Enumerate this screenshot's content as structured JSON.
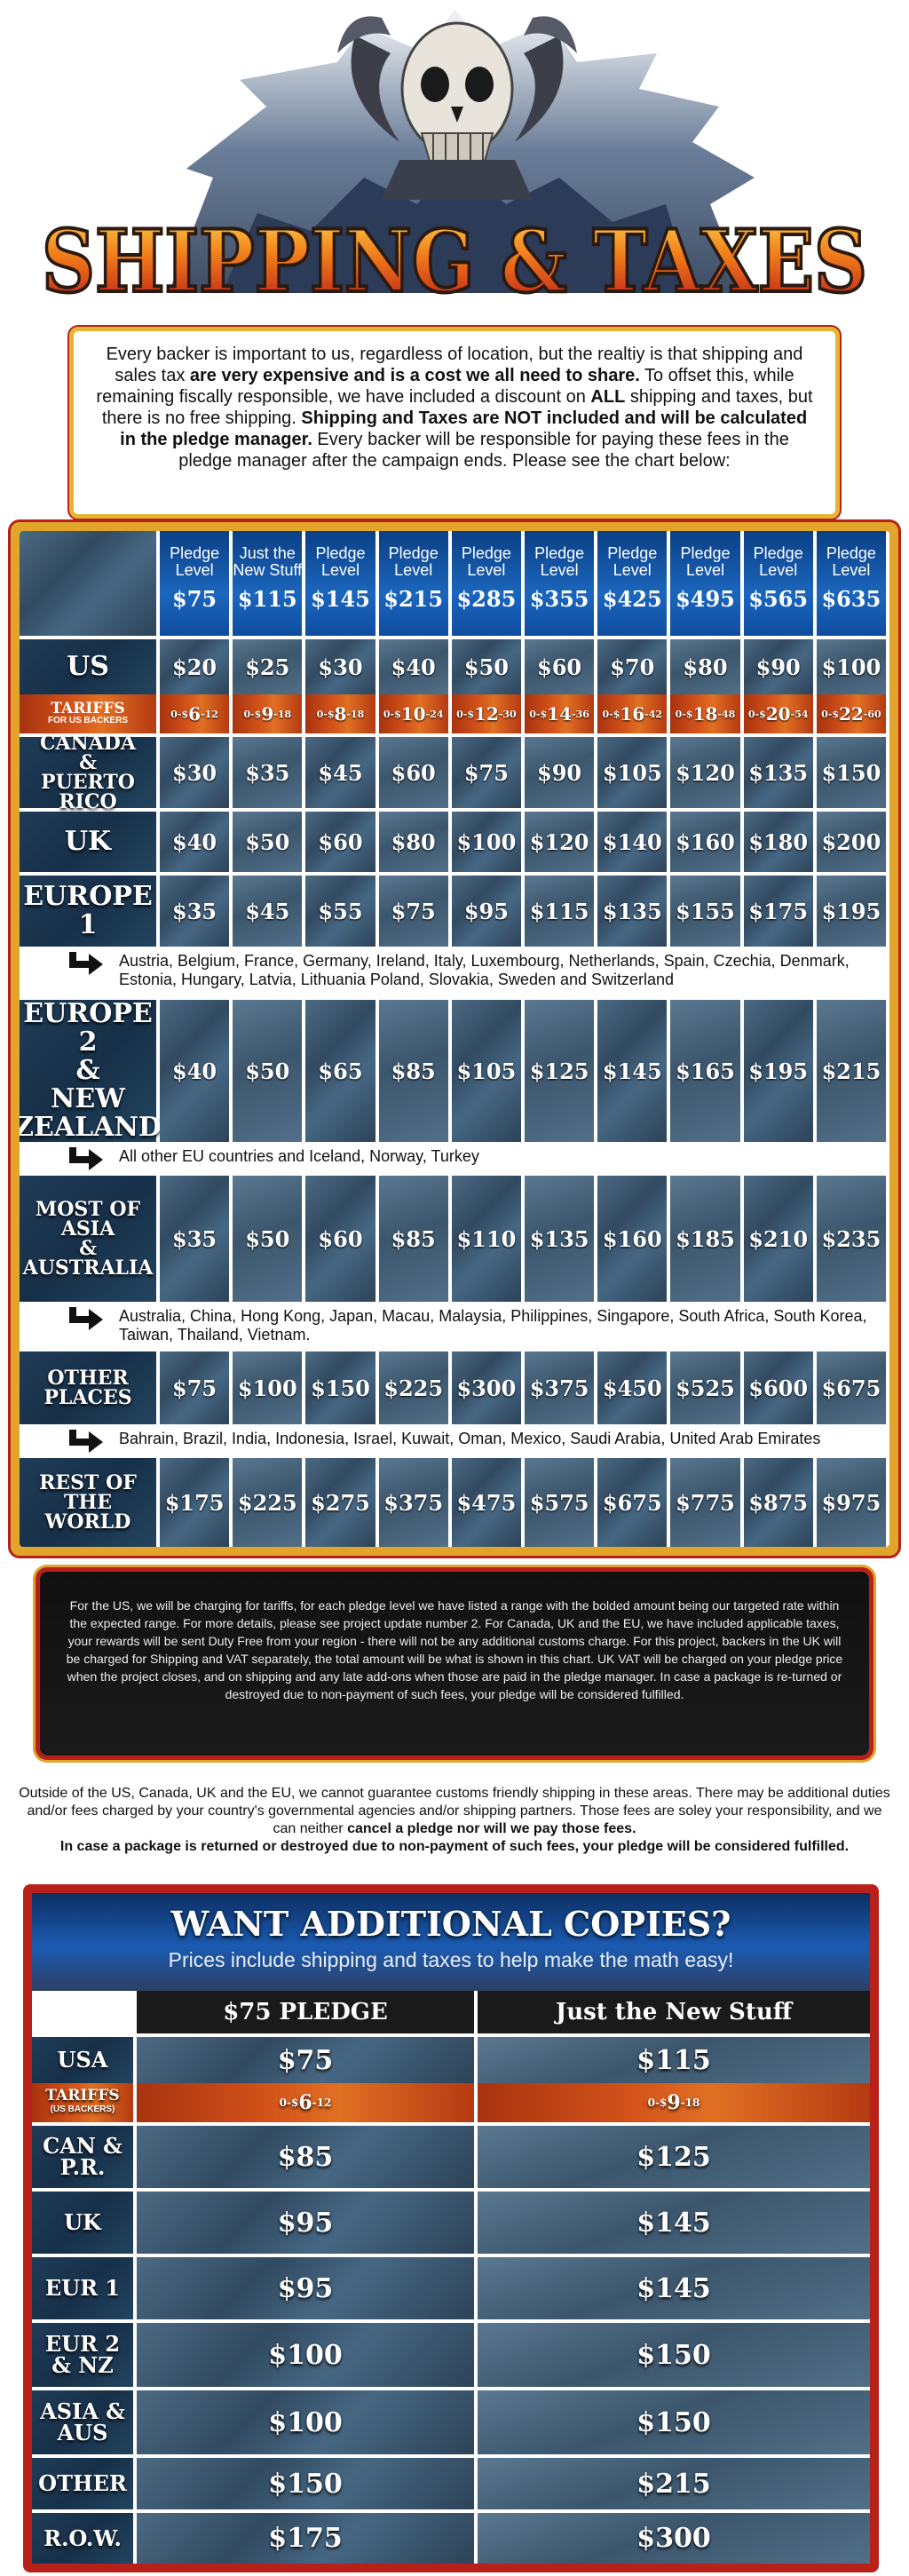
{
  "header": {
    "title": "SHIPPING & TAXES"
  },
  "intro": {
    "p1": "Every backer is important to us, regardless of location, but the realtiy is that shipping and sales tax ",
    "p1_bold": "are very expensive and is a cost we all need to share.",
    "p2": " To offset this, while remaining fiscally responsible, we have included a discount on ",
    "p2_bold": "ALL",
    "p3": " shipping and taxes, but there is no free shipping. ",
    "p3_bold": "Shipping and Taxes are NOT included and will be calculated in the pledge manager.",
    "p4": " Every backer will be responsible for paying these fees in the pledge manager after the campaign ends.  Please see the chart below:"
  },
  "table": {
    "header_cells": [
      {
        "label": "Pledge Level",
        "amount": "$75"
      },
      {
        "label": "Just the New Stuff",
        "amount": "$115"
      },
      {
        "label": "Pledge Level",
        "amount": "$145"
      },
      {
        "label": "Pledge Level",
        "amount": "$215"
      },
      {
        "label": "Pledge Level",
        "amount": "$285"
      },
      {
        "label": "Pledge Level",
        "amount": "$355"
      },
      {
        "label": "Pledge Level",
        "amount": "$425"
      },
      {
        "label": "Pledge Level",
        "amount": "$495"
      },
      {
        "label": "Pledge Level",
        "amount": "$565"
      },
      {
        "label": "Pledge Level",
        "amount": "$635"
      }
    ],
    "us": {
      "label": "US",
      "values": [
        "$20",
        "$25",
        "$30",
        "$40",
        "$50",
        "$60",
        "$70",
        "$80",
        "$90",
        "$100"
      ]
    },
    "tariffs": {
      "label": "TARIFFS",
      "sublabel": "FOR US BACKERS",
      "values": [
        {
          "lo": "0-",
          "sym": "$",
          "mid": "6",
          "hi": "-12"
        },
        {
          "lo": "0-",
          "sym": "$",
          "mid": "9",
          "hi": "-18"
        },
        {
          "lo": "0-",
          "sym": "$",
          "mid": "8",
          "hi": "-18"
        },
        {
          "lo": "0-",
          "sym": "$",
          "mid": "10",
          "hi": "-24"
        },
        {
          "lo": "0-",
          "sym": "$",
          "mid": "12",
          "hi": "-30"
        },
        {
          "lo": "0-",
          "sym": "$",
          "mid": "14",
          "hi": "-36"
        },
        {
          "lo": "0-",
          "sym": "$",
          "mid": "16",
          "hi": "-42"
        },
        {
          "lo": "0-",
          "sym": "$",
          "mid": "18",
          "hi": "-48"
        },
        {
          "lo": "0-",
          "sym": "$",
          "mid": "20",
          "hi": "-54"
        },
        {
          "lo": "0-",
          "sym": "$",
          "mid": " 22",
          "hi": "-60"
        }
      ]
    },
    "canada": {
      "label1": "CANADA",
      "label2": "&",
      "label3": "PUERTO RICO",
      "values": [
        "$30",
        "$35",
        "$45",
        "$60",
        "$75",
        "$90",
        "$105",
        "$120",
        "$135",
        "$150"
      ]
    },
    "uk": {
      "label": "UK",
      "values": [
        "$40",
        "$50",
        "$60",
        "$80",
        "$100",
        "$120",
        "$140",
        "$160",
        "$180",
        "$200"
      ]
    },
    "europe1": {
      "label": "EUROPE 1",
      "values": [
        "$35",
        "$45",
        "$55",
        "$75",
        "$95",
        "$115",
        "$135",
        "$155",
        "$175",
        "$195"
      ]
    },
    "europe1_note": "Austria, Belgium,  France, Germany, Ireland, Italy,  Luxembourg, Netherlands, Spain, Czechia, Denmark, Estonia, Hungary, Latvia, Lithuania  Poland,  Slovakia, Sweden and Switzerland",
    "europe2": {
      "label1": "EUROPE 2",
      "label2": "&",
      "label3": "NEW",
      "label4": "ZEALAND",
      "values": [
        "$40",
        "$50",
        "$65",
        "$85",
        "$105",
        "$125",
        "$145",
        "$165",
        "$195",
        "$215"
      ]
    },
    "europe2_note": "All other EU countries and Iceland, Norway, Turkey",
    "asia": {
      "label1": "MOST OF",
      "label2": "ASIA",
      "label3": "&",
      "label4": "AUSTRALIA",
      "values": [
        "$35",
        "$50",
        "$60",
        "$85",
        "$110",
        "$135",
        "$160",
        "$185",
        "$210",
        "$235"
      ]
    },
    "asia_note": "Australia, China, Hong Kong, Japan, Macau, Malaysia, Philippines, Singapore, South Africa, South Korea, Taiwan, Thailand, Vietnam.",
    "other": {
      "label1": "OTHER",
      "label2": "PLACES",
      "values": [
        "$75",
        "$100",
        "$150",
        "$225",
        "$300",
        "$375",
        "$450",
        "$525",
        "$600",
        "$675"
      ]
    },
    "other_note": "Bahrain, Brazil, India, Indonesia, Israel, Kuwait, Oman, Mexico, Saudi Arabia, United Arab Emirates",
    "row": {
      "label1": "REST OF",
      "label2": "THE",
      "label3": "WORLD",
      "values": [
        "$175",
        "$225",
        "$275",
        "$375",
        "$475",
        "$575",
        "$675",
        "$775",
        "$875",
        "$975"
      ]
    }
  },
  "footnote": "For the US, we will be charging for tariffs, for each pledge level we have listed a range with the bolded amount being our targeted rate within the expected range. For more details, please see project update number 2. For Canada, UK and the EU, we have included applicable taxes, your rewards will be sent Duty Free from your region - there will not be any additional customs charge. For this project, backers in the UK will be charged for Shipping and VAT separately, the total amount will be what is shown in this chart.  UK VAT will be charged on your pledge price when the project closes, and on shipping and any late add-ons when those are paid in the pledge manager. In case a package is re-turned or destroyed due to non-payment of such fees, your pledge will be considered fulfilled.",
  "outside": {
    "t1": "Outside of the US, Canada, UK and the EU, we cannot guarantee customs friendly shipping in these areas. There may be additional duties and/or fees charged by your country's governmental agencies and/or shipping partners.  Those fees are soley your responsibility, and we can neither ",
    "t1_bold": "cancel a pledge nor will we pay those fees.",
    "t2_bold": "In case a package is returned or destroyed due to non-payment of such fees, your pledge will be considered fulfilled."
  },
  "copies": {
    "title": "WANT ADDITIONAL COPIES?",
    "subtitle": "Prices include shipping and taxes to help make the math easy!",
    "col1": "$75 PLEDGE",
    "col2": "Just the New Stuff",
    "rows": [
      {
        "label": "USA",
        "v1": "$75",
        "v2": "$115"
      },
      {
        "label": "CAN & P.R.",
        "v1": "$85",
        "v2": "$125"
      },
      {
        "label": "UK",
        "v1": "$95",
        "v2": "$145"
      },
      {
        "label": "EUR 1",
        "v1": "$95",
        "v2": "$145"
      },
      {
        "label": "EUR 2 & NZ",
        "v1": "$100",
        "v2": "$150"
      },
      {
        "label": "ASIA & AUS",
        "v1": "$100",
        "v2": "$150"
      },
      {
        "label": "OTHER",
        "v1": "$150",
        "v2": "$215"
      },
      {
        "label": "R.O.W.",
        "v1": "$175",
        "v2": "$300"
      }
    ],
    "tariff": {
      "label": "TARIFFS",
      "sublabel": "(US BACKERS)",
      "v1_lo": "0-",
      "v1_sym": "$",
      "v1_mid": "6",
      "v1_hi": "-12",
      "v2_lo": "0-",
      "v2_sym": "$",
      "v2_mid": "9",
      "v2_hi": "-18"
    }
  },
  "colors": {
    "gold": "#e0a52a",
    "red": "#b8211a",
    "blue": "#1b66bd",
    "tariff": "#d4531a"
  }
}
